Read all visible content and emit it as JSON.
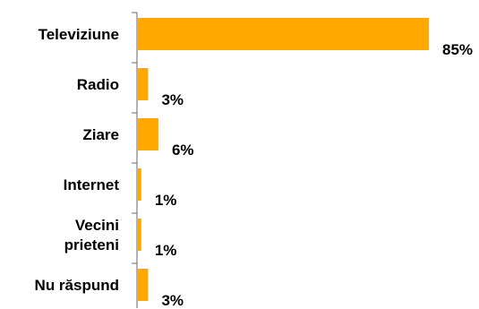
{
  "chart_data": {
    "type": "bar",
    "orientation": "horizontal",
    "categories": [
      [
        "Televiziune"
      ],
      [
        "Radio"
      ],
      [
        "Ziare"
      ],
      [
        "Internet"
      ],
      [
        "Vecini",
        "prieteni"
      ],
      [
        "Nu răspund"
      ]
    ],
    "values": [
      85,
      3,
      6,
      1,
      1,
      3
    ],
    "value_labels": [
      "85%",
      "3%",
      "6%",
      "1%",
      "1%",
      "3%"
    ],
    "title": "",
    "xlabel": "",
    "ylabel": "",
    "xlim": [
      0,
      85
    ],
    "grid": false,
    "legend": "none",
    "colors": {
      "bar": "#FFA800",
      "axis": "#7f7f7f",
      "text": "#000000"
    }
  }
}
